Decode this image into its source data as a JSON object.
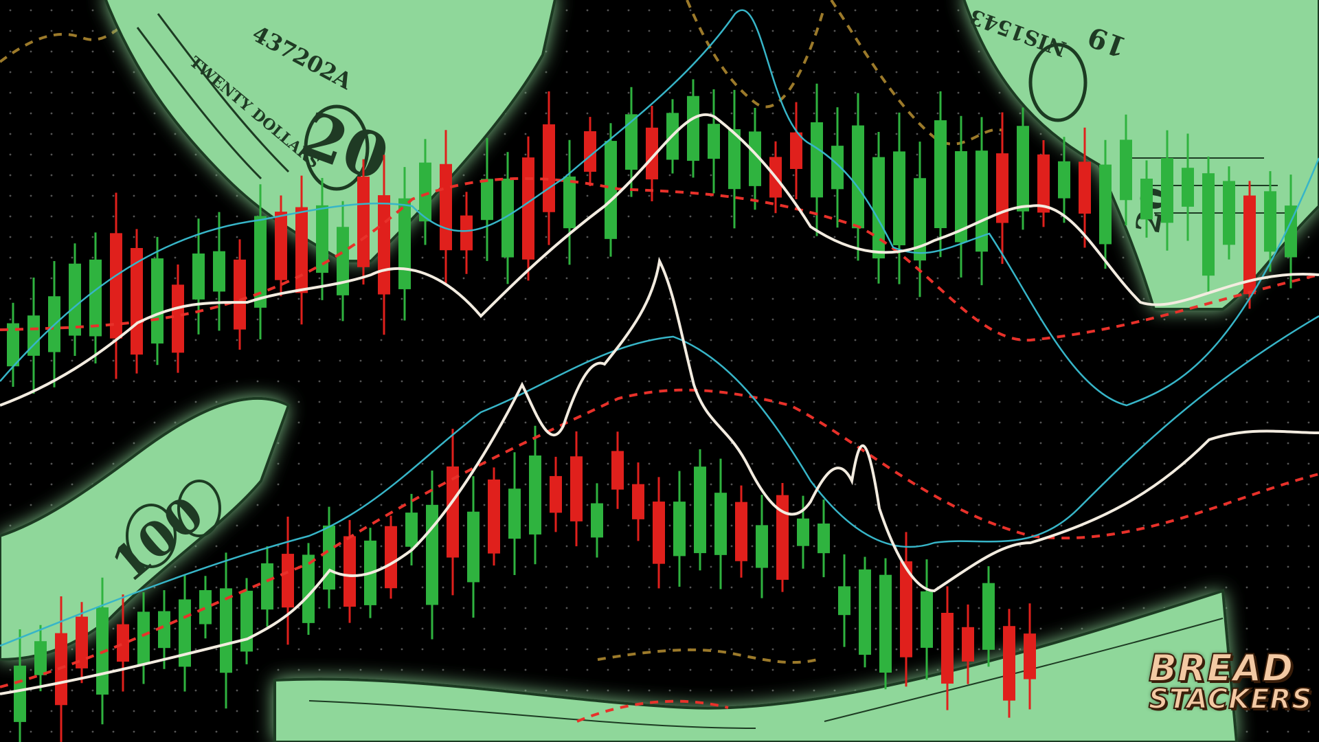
{
  "scene": {
    "description_tags": [
      "stock-chart",
      "candlesticks",
      "dollar-bills",
      "moving-averages",
      "dotted-grid"
    ],
    "colors": {
      "background": "#000000",
      "bull": "#2fb33f",
      "bear": "#e0201c",
      "money": "#8fd79a",
      "money_ink": "#1f3a24",
      "ma_white": "#f3ece0",
      "ma_cyan": "#37b5c8",
      "ma_red": "#e8312a",
      "ma_gold": "#9c7a2a",
      "grid": "#4a4a4a"
    }
  },
  "logo": {
    "line1": "BREAD",
    "line2": "STACKERS"
  },
  "bill_prints": {
    "tl_denom": "20",
    "tl_serial": "437202A",
    "tl_band": "TWENTY DOLLARS",
    "tr_serial": "NIS1543",
    "tr_denom": "19",
    "tr_denom2": "20",
    "left_denom": "100"
  }
}
